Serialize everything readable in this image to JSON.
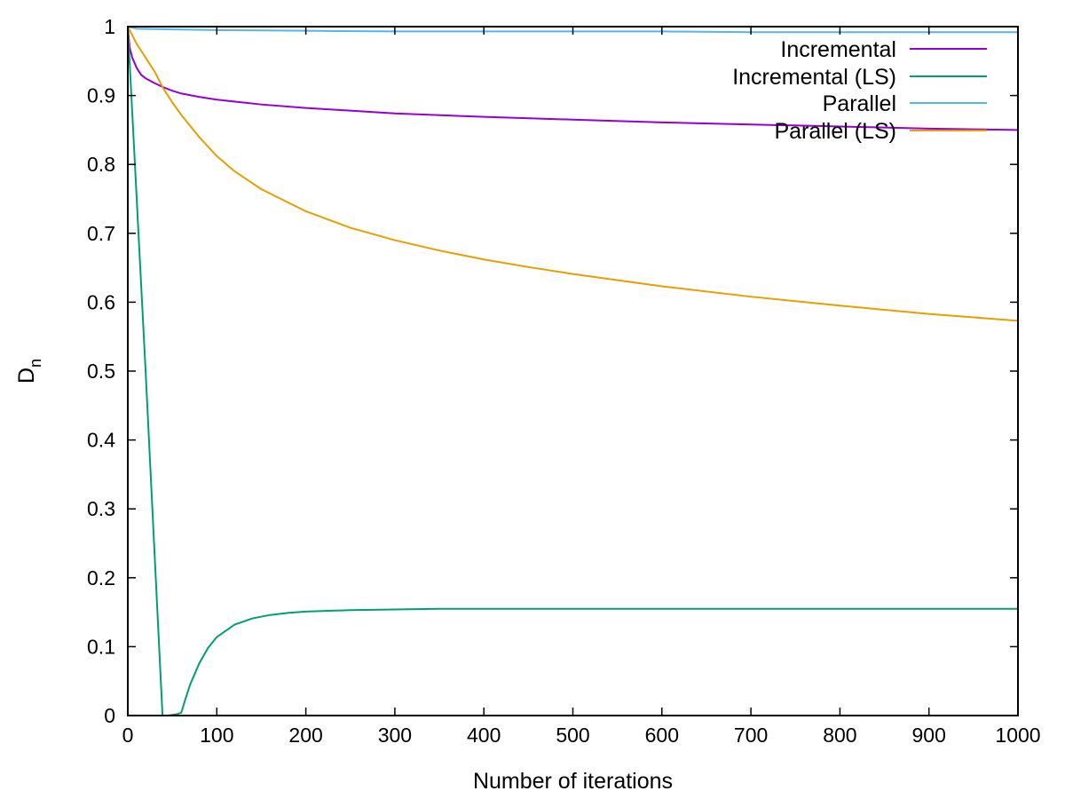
{
  "chart_data": {
    "type": "line",
    "xlabel": "Number of iterations",
    "ylabel_main": "D",
    "ylabel_sub": "n",
    "xlim": [
      0,
      1000
    ],
    "ylim": [
      0,
      1
    ],
    "xticks": [
      0,
      100,
      200,
      300,
      400,
      500,
      600,
      700,
      800,
      900,
      1000
    ],
    "yticks": [
      0,
      0.1,
      0.2,
      0.3,
      0.4,
      0.5,
      0.6,
      0.7,
      0.8,
      0.9,
      1
    ],
    "xtick_labels": [
      "0",
      "100",
      "200",
      "300",
      "400",
      "500",
      "600",
      "700",
      "800",
      "900",
      "1000"
    ],
    "ytick_labels": [
      "0",
      "0.1",
      "0.2",
      "0.3",
      "0.4",
      "0.5",
      "0.6",
      "0.7",
      "0.8",
      "0.9",
      "1"
    ],
    "grid": false,
    "legend_position": "top-right",
    "series": [
      {
        "name": "Incremental",
        "color": "#9400d3",
        "x": [
          0,
          2,
          5,
          10,
          15,
          20,
          30,
          40,
          50,
          60,
          80,
          100,
          150,
          200,
          250,
          300,
          400,
          500,
          600,
          700,
          800,
          900,
          1000
        ],
        "y": [
          1.0,
          0.97,
          0.955,
          0.94,
          0.93,
          0.925,
          0.918,
          0.912,
          0.907,
          0.903,
          0.898,
          0.894,
          0.887,
          0.882,
          0.878,
          0.874,
          0.869,
          0.865,
          0.861,
          0.858,
          0.855,
          0.852,
          0.85
        ]
      },
      {
        "name": "Incremental (LS)",
        "color": "#009e73",
        "x": [
          0,
          20,
          39,
          45,
          50,
          55,
          60,
          65,
          70,
          80,
          90,
          100,
          120,
          140,
          160,
          180,
          200,
          250,
          300,
          350,
          400,
          500,
          600,
          700,
          800,
          900,
          1000
        ],
        "y": [
          1.0,
          0.5,
          0.0,
          0.0,
          0.001,
          0.002,
          0.004,
          0.025,
          0.045,
          0.075,
          0.098,
          0.114,
          0.132,
          0.141,
          0.146,
          0.149,
          0.151,
          0.153,
          0.154,
          0.155,
          0.155,
          0.155,
          0.155,
          0.155,
          0.155,
          0.155,
          0.155
        ]
      },
      {
        "name": "Parallel",
        "color": "#56b4e9",
        "x": [
          0,
          10,
          50,
          100,
          200,
          300,
          400,
          500,
          600,
          700,
          800,
          900,
          1000
        ],
        "y": [
          1.0,
          0.997,
          0.996,
          0.995,
          0.994,
          0.993,
          0.993,
          0.993,
          0.993,
          0.992,
          0.992,
          0.992,
          0.992
        ]
      },
      {
        "name": "Parallel (LS)",
        "color": "#e69f00",
        "x": [
          0,
          10,
          20,
          30,
          40,
          50,
          60,
          80,
          100,
          120,
          150,
          200,
          250,
          300,
          350,
          400,
          450,
          500,
          600,
          700,
          800,
          900,
          1000
        ],
        "y": [
          1.0,
          0.975,
          0.955,
          0.935,
          0.91,
          0.89,
          0.872,
          0.84,
          0.812,
          0.79,
          0.764,
          0.732,
          0.708,
          0.69,
          0.675,
          0.662,
          0.651,
          0.641,
          0.623,
          0.608,
          0.595,
          0.583,
          0.573
        ]
      }
    ]
  }
}
